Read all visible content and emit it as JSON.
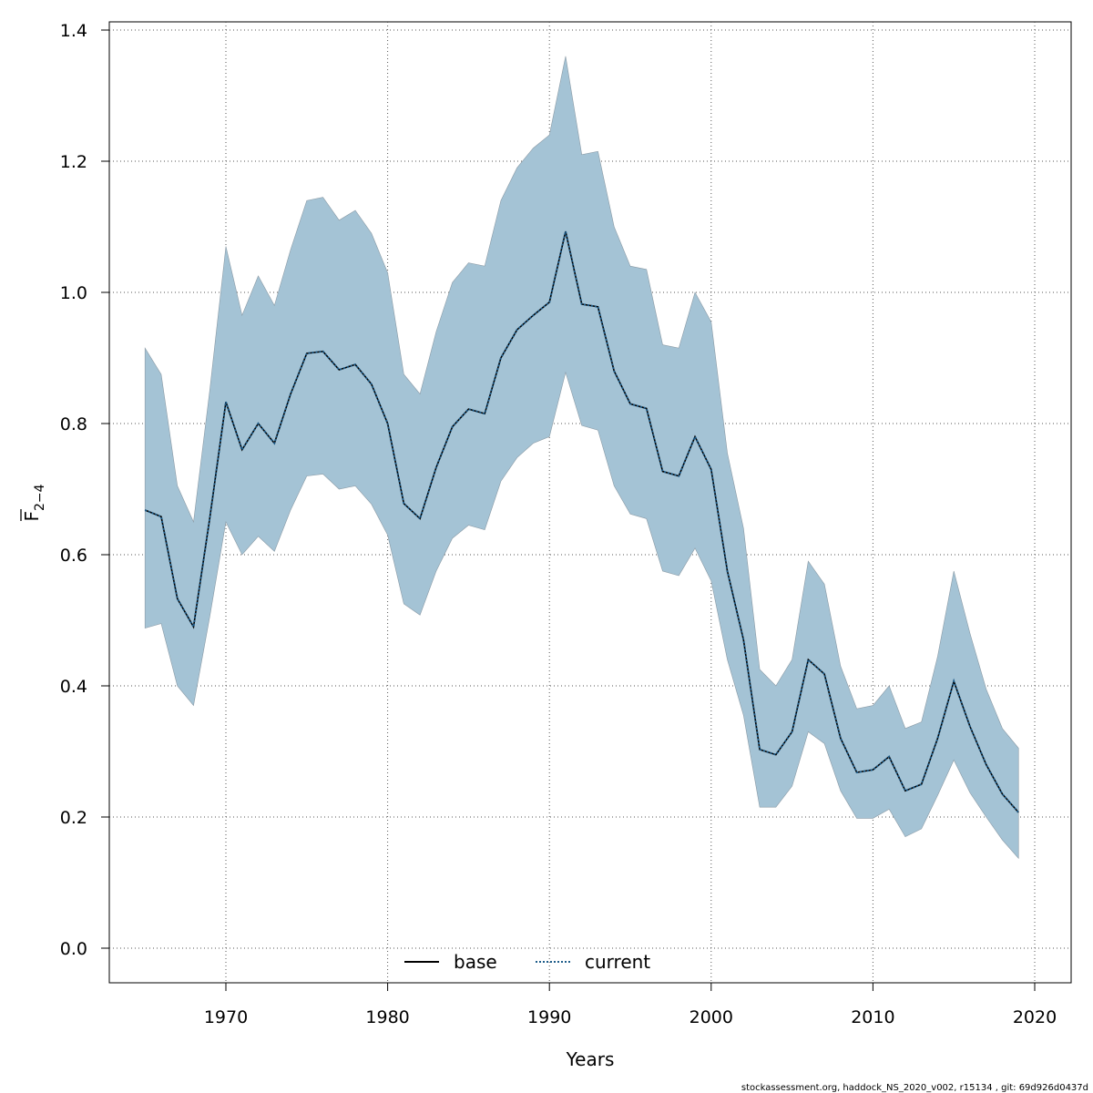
{
  "chart_data": {
    "type": "area",
    "xlabel": "Years",
    "ylabel": {
      "main": "F",
      "subscript": "2−4"
    },
    "xlim": [
      1963,
      2022
    ],
    "ylim": [
      -0.05,
      1.42
    ],
    "x_ticks": [
      1970,
      1980,
      1990,
      2000,
      2010,
      2020
    ],
    "y_ticks": [
      "0.0",
      "0.2",
      "0.4",
      "0.6",
      "0.8",
      "1.0",
      "1.2",
      "1.4"
    ],
    "grid": true,
    "legend_position": "bottom-center",
    "x": [
      1965,
      1966,
      1967,
      1968,
      1969,
      1970,
      1971,
      1972,
      1973,
      1974,
      1975,
      1976,
      1977,
      1978,
      1979,
      1980,
      1981,
      1982,
      1983,
      1984,
      1985,
      1986,
      1987,
      1988,
      1989,
      1990,
      1991,
      1992,
      1993,
      1994,
      1995,
      1996,
      1997,
      1998,
      1999,
      2000,
      2001,
      2002,
      2003,
      2004,
      2005,
      2006,
      2007,
      2008,
      2009,
      2010,
      2011,
      2012,
      2013,
      2014,
      2015,
      2016,
      2017,
      2018,
      2019
    ],
    "band": {
      "color": "#a4c3d5",
      "upper": [
        0.915,
        0.875,
        0.705,
        0.65,
        0.85,
        1.07,
        0.965,
        1.025,
        0.98,
        1.065,
        1.14,
        1.145,
        1.11,
        1.125,
        1.09,
        1.03,
        0.875,
        0.845,
        0.94,
        1.015,
        1.045,
        1.04,
        1.14,
        1.19,
        1.22,
        1.24,
        1.36,
        1.21,
        1.215,
        1.1,
        1.04,
        1.035,
        0.92,
        0.915,
        1.0,
        0.955,
        0.755,
        0.64,
        0.425,
        0.4,
        0.44,
        0.59,
        0.555,
        0.43,
        0.365,
        0.37,
        0.4,
        0.335,
        0.345,
        0.445,
        0.575,
        0.48,
        0.395,
        0.335,
        0.305
      ],
      "lower": [
        0.488,
        0.495,
        0.4,
        0.37,
        0.505,
        0.65,
        0.6,
        0.628,
        0.605,
        0.668,
        0.72,
        0.723,
        0.7,
        0.705,
        0.677,
        0.63,
        0.525,
        0.508,
        0.575,
        0.625,
        0.645,
        0.638,
        0.712,
        0.748,
        0.77,
        0.78,
        0.878,
        0.797,
        0.79,
        0.705,
        0.662,
        0.655,
        0.575,
        0.568,
        0.61,
        0.56,
        0.44,
        0.355,
        0.215,
        0.215,
        0.247,
        0.33,
        0.312,
        0.24,
        0.198,
        0.198,
        0.212,
        0.17,
        0.182,
        0.233,
        0.287,
        0.237,
        0.2,
        0.165,
        0.137
      ]
    },
    "series": [
      {
        "name": "base",
        "color": "#000000",
        "style": "solid",
        "values": [
          0.668,
          0.658,
          0.533,
          0.49,
          0.655,
          0.833,
          0.76,
          0.8,
          0.77,
          0.845,
          0.907,
          0.91,
          0.882,
          0.89,
          0.86,
          0.8,
          0.678,
          0.655,
          0.733,
          0.795,
          0.822,
          0.815,
          0.9,
          0.943,
          0.965,
          0.985,
          1.093,
          0.982,
          0.978,
          0.88,
          0.83,
          0.823,
          0.727,
          0.72,
          0.78,
          0.73,
          0.575,
          0.47,
          0.303,
          0.295,
          0.33,
          0.44,
          0.418,
          0.32,
          0.268,
          0.272,
          0.292,
          0.24,
          0.25,
          0.32,
          0.407,
          0.338,
          0.28,
          0.235,
          0.207
        ]
      },
      {
        "name": "current",
        "color": "#1f5d8a",
        "style": "dotted",
        "values": [
          0.668,
          0.658,
          0.533,
          0.49,
          0.655,
          0.833,
          0.76,
          0.8,
          0.77,
          0.845,
          0.907,
          0.91,
          0.882,
          0.89,
          0.86,
          0.8,
          0.678,
          0.655,
          0.733,
          0.795,
          0.822,
          0.815,
          0.9,
          0.943,
          0.965,
          0.985,
          1.093,
          0.982,
          0.978,
          0.88,
          0.83,
          0.823,
          0.727,
          0.72,
          0.78,
          0.73,
          0.575,
          0.47,
          0.303,
          0.295,
          0.33,
          0.44,
          0.418,
          0.32,
          0.268,
          0.272,
          0.292,
          0.24,
          0.25,
          0.32,
          0.407,
          0.338,
          0.28,
          0.235,
          0.207
        ]
      }
    ]
  },
  "footer": "stockassessment.org, haddock_NS_2020_v002, r15134 , git: 69d926d0437d"
}
